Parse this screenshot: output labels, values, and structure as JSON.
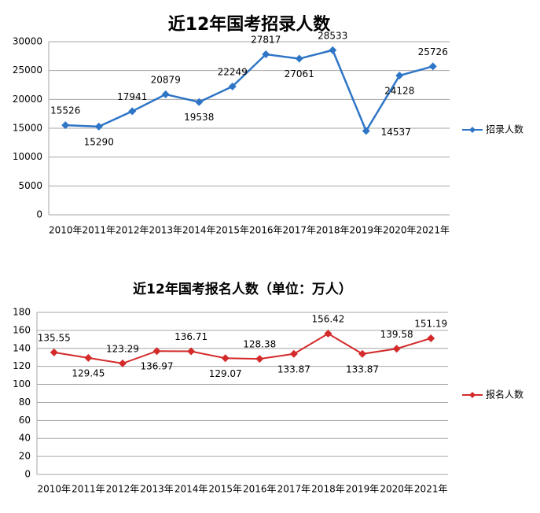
{
  "chart_data": [
    {
      "type": "line",
      "title": "近12年国考招录人数",
      "categories": [
        "2010年",
        "2011年",
        "2012年",
        "2013年",
        "2014年",
        "2015年",
        "2016年",
        "2017年",
        "2018年",
        "2019年",
        "2020年",
        "2021年"
      ],
      "series": [
        {
          "name": "招录人数",
          "color": "#2e75c6",
          "values": [
            15526,
            15290,
            17941,
            20879,
            19538,
            22249,
            27817,
            27061,
            28533,
            14537,
            24128,
            25726
          ]
        }
      ],
      "ylim": [
        0,
        30000
      ],
      "yticks": [
        0,
        5000,
        10000,
        15000,
        20000,
        25000,
        30000
      ],
      "grid": true,
      "legend": "right"
    },
    {
      "type": "line",
      "title": "近12年国考报名人数（单位：万人）",
      "categories": [
        "2010年",
        "2011年",
        "2012年",
        "2013年",
        "2014年",
        "2015年",
        "2016年",
        "2017年",
        "2018年",
        "2019年",
        "2020年",
        "2021年"
      ],
      "series": [
        {
          "name": "报名人数",
          "color": "#d42a2a",
          "values": [
            135.55,
            129.45,
            123.29,
            136.97,
            136.71,
            129.07,
            128.38,
            133.87,
            156.42,
            133.87,
            139.58,
            151.19
          ]
        }
      ],
      "ylim": [
        0,
        180
      ],
      "yticks": [
        0,
        20,
        40,
        60,
        80,
        100,
        120,
        140,
        160,
        180
      ],
      "grid": true,
      "legend": "right"
    }
  ]
}
